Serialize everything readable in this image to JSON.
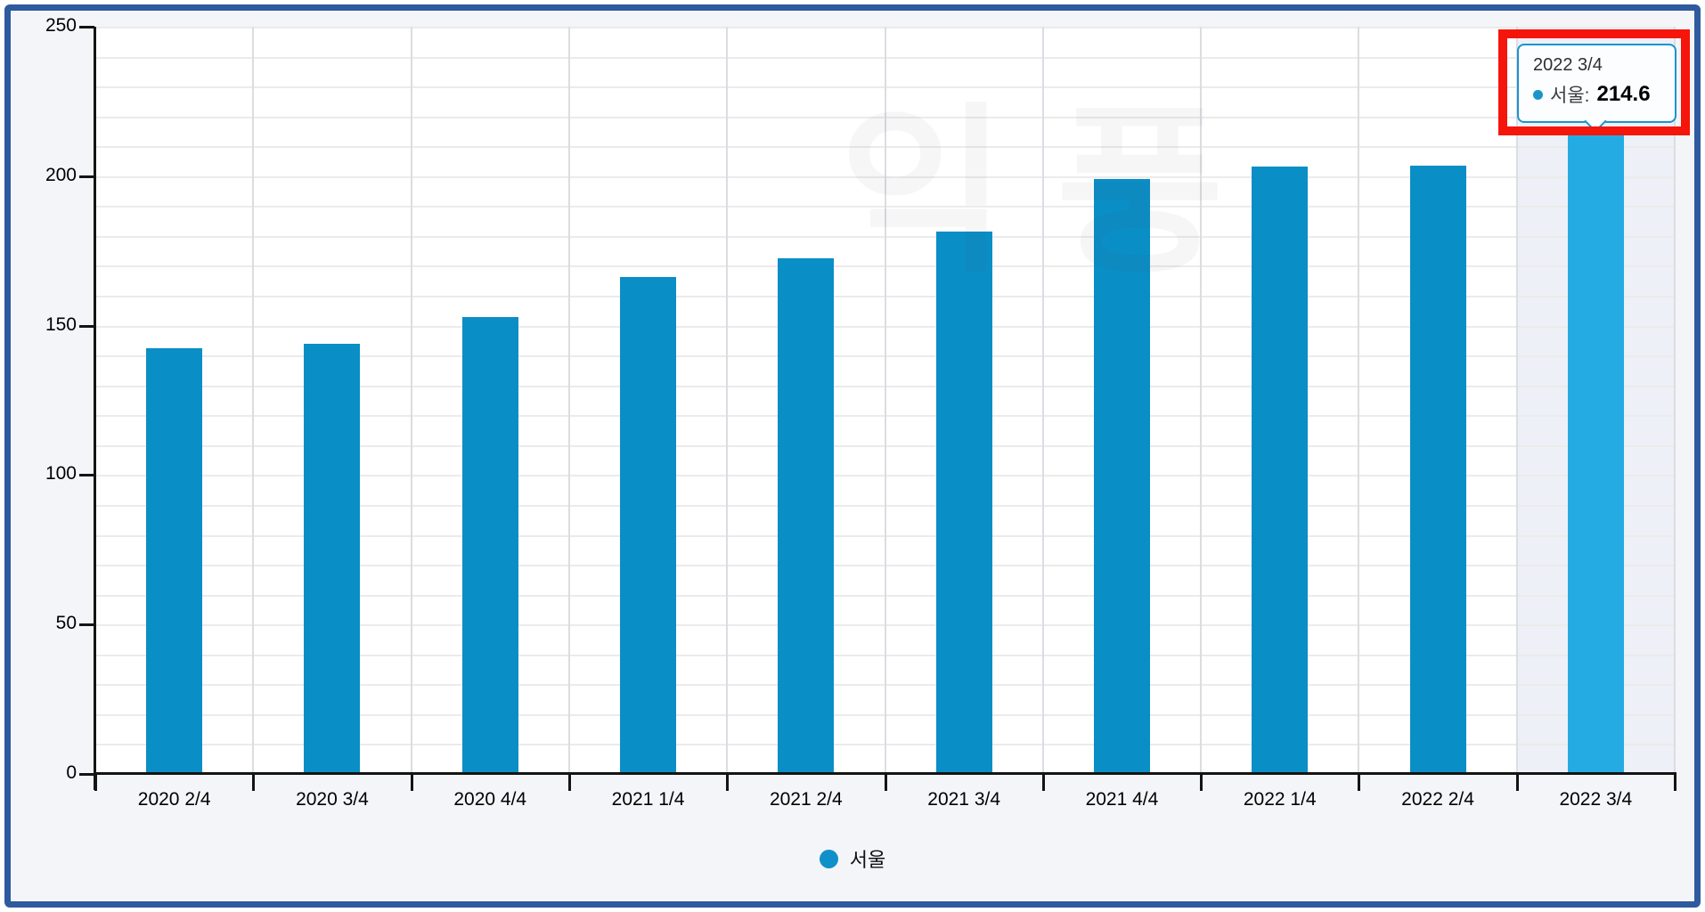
{
  "chart_data": {
    "type": "bar",
    "title": "",
    "xlabel": "",
    "ylabel": "",
    "categories": [
      "2020 2/4",
      "2020 3/4",
      "2020 4/4",
      "2021 1/4",
      "2021 2/4",
      "2021 3/4",
      "2021 4/4",
      "2022 1/4",
      "2022 2/4",
      "2022 3/4"
    ],
    "series": [
      {
        "name": "서울",
        "values": [
          142.3,
          144.0,
          153.0,
          166.2,
          172.5,
          181.5,
          199.0,
          203.2,
          203.6,
          214.6
        ]
      }
    ],
    "ylim": [
      0,
      250
    ],
    "y_ticks": [
      0,
      50,
      100,
      150,
      200,
      250
    ],
    "y_minor_grid_step": 10,
    "grid": true,
    "legend_position": "bottom",
    "highlighted_index": 9
  },
  "legend": {
    "label": "서울"
  },
  "tooltip": {
    "header": "2022 3/4",
    "series_label": "서울",
    "separator": ":",
    "value": "214.6"
  },
  "watermark": {
    "text": "익풍"
  },
  "colors": {
    "bar": "#0a8ec6",
    "bar_highlighted": "#25abe3",
    "hover_band": "#edf0f6",
    "legend_marker": "#0f90c8",
    "tooltip_border": "#1b94cb",
    "annotation_highlight": "#f6150a",
    "frame_border": "#2e5a9e",
    "page_background": "#f4f5f9"
  }
}
